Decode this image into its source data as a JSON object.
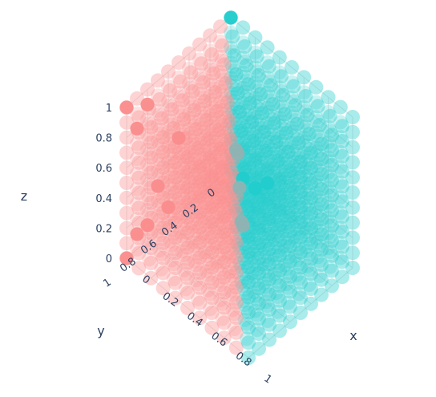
{
  "chart_data": {
    "type": "scatter3d",
    "axes": {
      "x": {
        "title": "x",
        "range": [
          0,
          1
        ],
        "ticks": [
          0,
          0.2,
          0.4,
          0.6,
          0.8,
          1
        ],
        "tick_labels": [
          "0",
          "0.2",
          "0.4",
          "0.6",
          "0.8",
          "1"
        ]
      },
      "y": {
        "title": "y",
        "range": [
          0,
          1
        ],
        "ticks": [
          0,
          0.2,
          0.4,
          0.6,
          0.8,
          1
        ],
        "tick_labels": [
          "0",
          "0.2",
          "0.4",
          "0.6",
          "0.8",
          "1"
        ]
      },
      "z": {
        "title": "z",
        "range": [
          0,
          1
        ],
        "ticks": [
          0,
          0.2,
          0.4,
          0.6,
          0.8,
          1
        ],
        "tick_labels": [
          "0",
          "0.2",
          "0.4",
          "0.6",
          "0.8",
          "1"
        ]
      }
    },
    "grid": true,
    "legend": "none",
    "series": [
      {
        "color": "#fa8c8c",
        "rule": "points on a regular 0.1 lattice in the unit cube where y > x",
        "opacity_interior": 0.25,
        "opacity_surface": 0.85,
        "values": {
          "x": [
            0,
            0.1,
            0.2,
            0.3,
            0.4,
            0.5,
            0.6,
            0.7,
            0.8,
            0.9,
            1
          ],
          "y": [
            0,
            0.1,
            0.2,
            0.3,
            0.4,
            0.5,
            0.6,
            0.7,
            0.8,
            0.9,
            1
          ],
          "z": [
            0,
            0.1,
            0.2,
            0.3,
            0.4,
            0.5,
            0.6,
            0.7,
            0.8,
            0.9,
            1
          ]
        }
      },
      {
        "color": "#21cccc",
        "rule": "points on a regular 0.1 lattice in the unit cube where x >= y",
        "opacity_interior": 0.25,
        "opacity_surface": 0.85,
        "values": {
          "x": [
            0,
            0.1,
            0.2,
            0.3,
            0.4,
            0.5,
            0.6,
            0.7,
            0.8,
            0.9,
            1
          ],
          "y": [
            0,
            0.1,
            0.2,
            0.3,
            0.4,
            0.5,
            0.6,
            0.7,
            0.8,
            0.9,
            1
          ],
          "z": [
            0,
            0.1,
            0.2,
            0.3,
            0.4,
            0.5,
            0.6,
            0.7,
            0.8,
            0.9,
            1
          ]
        }
      }
    ],
    "highlighted_points": [
      {
        "x": 0,
        "y": 0,
        "z": 1,
        "color": "#21cccc"
      },
      {
        "x": 0,
        "y": 1,
        "z": 0,
        "color": "#fa8c8c"
      },
      {
        "x": 0,
        "y": 1,
        "z": 1,
        "color": "#fa8c8c"
      },
      {
        "x": 0,
        "y": 0.8,
        "z": 0.9,
        "color": "#fa8c8c"
      },
      {
        "x": 0,
        "y": 0.9,
        "z": 0.8,
        "color": "#fa8c8c"
      },
      {
        "x": 0,
        "y": 0.5,
        "z": 0.5,
        "color": "#fa8c8c"
      },
      {
        "x": 0,
        "y": 0.7,
        "z": 0.3,
        "color": "#fa8c8c"
      },
      {
        "x": 0,
        "y": 0.6,
        "z": 0.1,
        "color": "#fa8c8c"
      },
      {
        "x": 0,
        "y": 0.8,
        "z": 0.1,
        "color": "#fa8c8c"
      },
      {
        "x": 0,
        "y": 0.9,
        "z": 0.1,
        "color": "#fa8c8c"
      },
      {
        "x": 0.1,
        "y": 0,
        "z": 0,
        "color": "#21cccc"
      },
      {
        "x": 0.2,
        "y": 0,
        "z": 0,
        "color": "#21cccc"
      },
      {
        "x": 0.3,
        "y": 0,
        "z": 0.1,
        "color": "#21cccc"
      },
      {
        "x": 0.5,
        "y": 0.5,
        "z": 0.5,
        "color": "#8fb3b3"
      },
      {
        "x": 0.4,
        "y": 0.4,
        "z": 0.6,
        "color": "#8fb3b3"
      },
      {
        "x": 0.6,
        "y": 0.6,
        "z": 0.4,
        "color": "#8fb3b3"
      },
      {
        "x": 0.3,
        "y": 0.3,
        "z": 0.5,
        "color": "#8fb3b3"
      },
      {
        "x": 0.7,
        "y": 0.7,
        "z": 0.5,
        "color": "#8fb3b3"
      }
    ]
  }
}
